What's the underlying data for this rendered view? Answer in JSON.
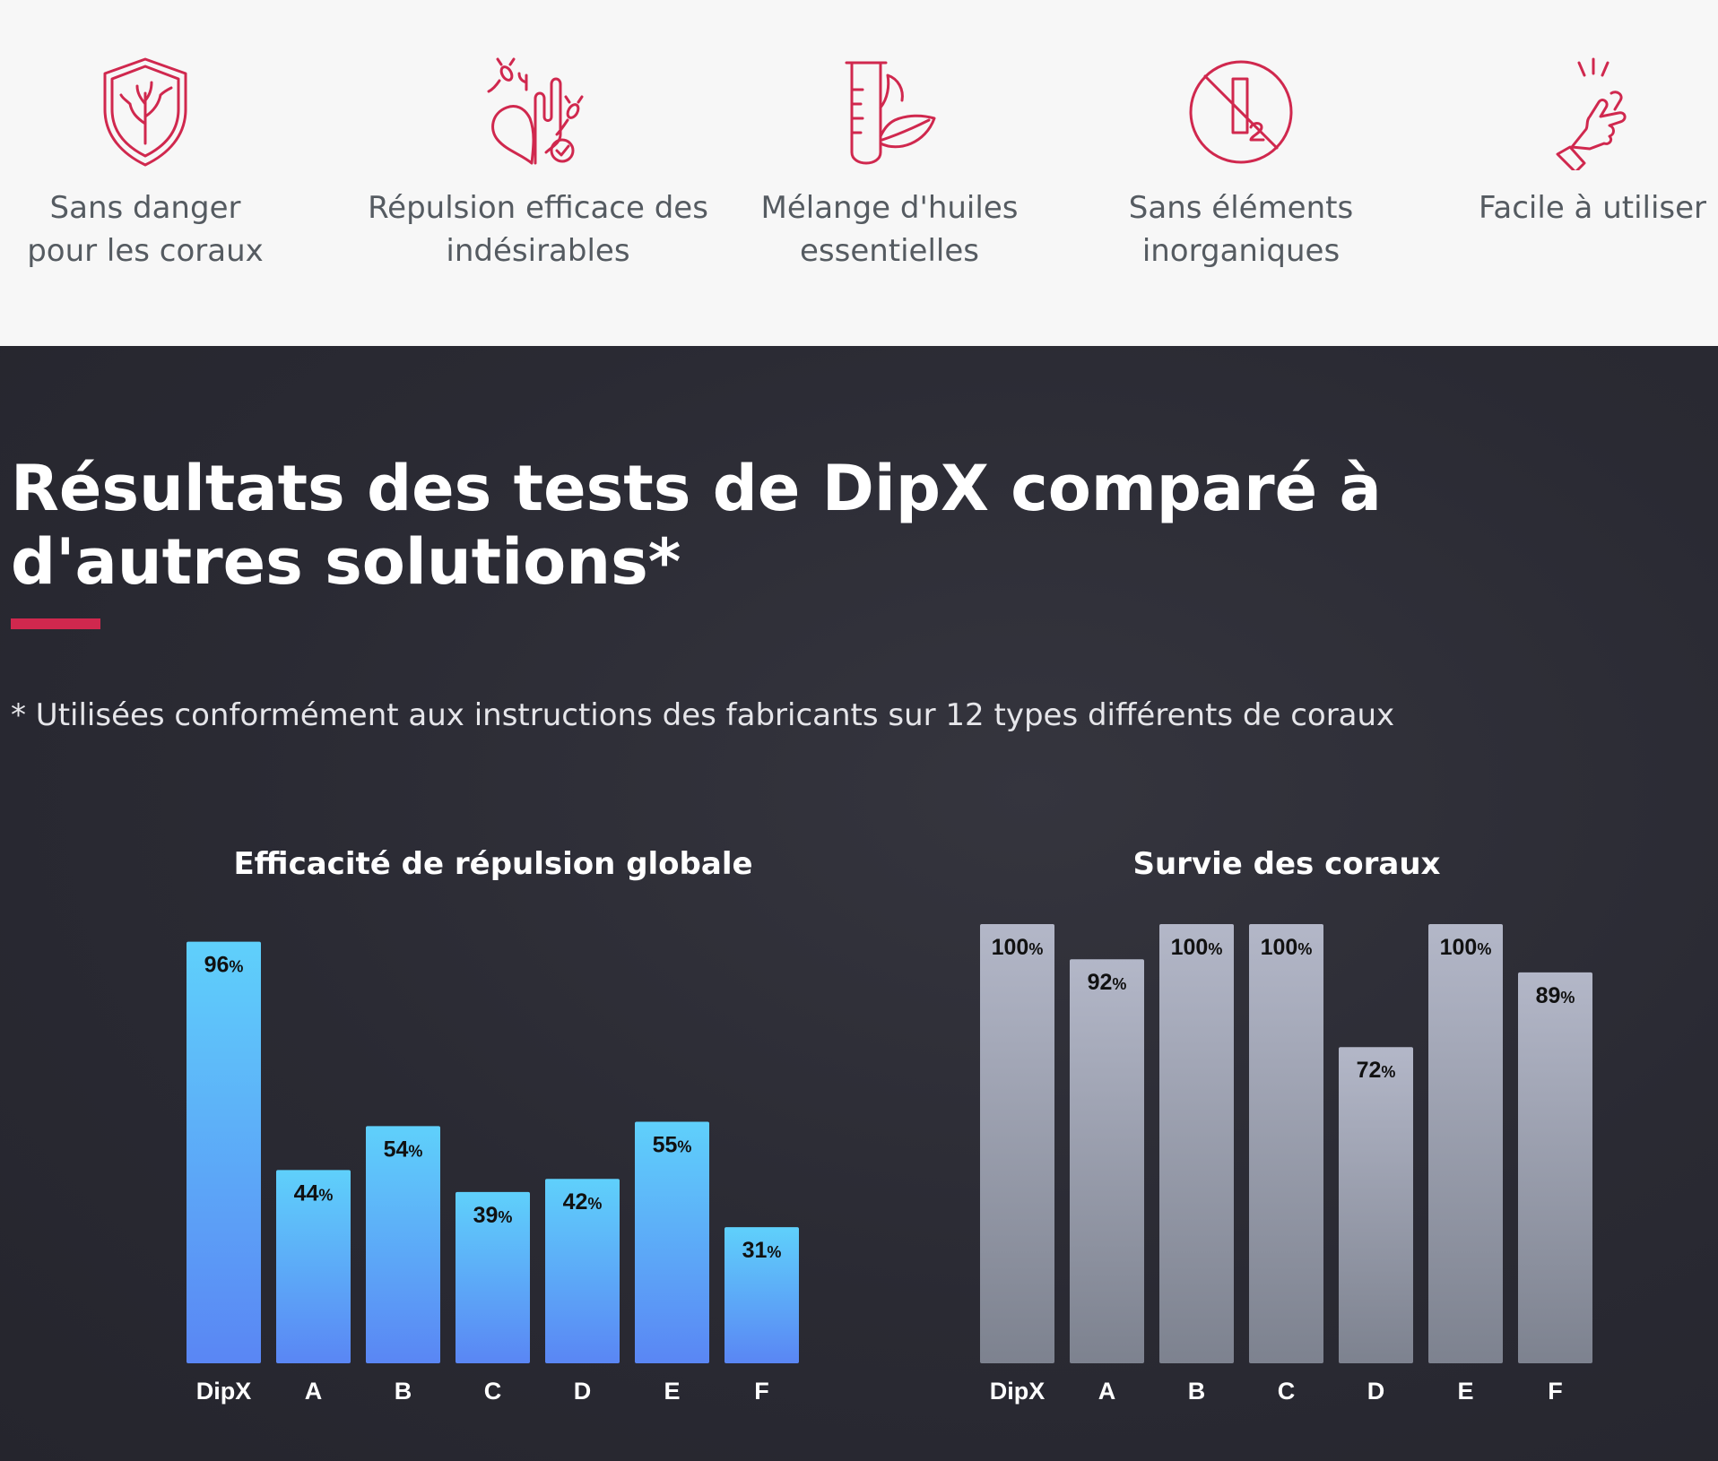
{
  "features": [
    {
      "label": "Sans danger\npour les coraux",
      "icon": "coral-shield-icon"
    },
    {
      "label": "Répulsion efficace des\nindésirables",
      "icon": "coral-pests-icon"
    },
    {
      "label": "Mélange d'huiles\nessentielles",
      "icon": "test-tube-leaf-icon"
    },
    {
      "label": "Sans éléments\ninorganiques",
      "icon": "no-inorganic-icon"
    },
    {
      "label": "Facile à utiliser",
      "icon": "tap-hand-icon"
    }
  ],
  "section": {
    "title": "Résultats des tests de DipX comparé à d'autres solutions*",
    "note": "* Utilisées conformément aux instructions des fabricants sur 12 types différents de coraux"
  },
  "colors": {
    "accent": "#d0284e",
    "icon": "#d0284e",
    "blue_top": "#5fd0fb",
    "blue_bottom": "#5a86f4",
    "gray_top": "#b3b7c8",
    "gray_bottom": "#7d828f"
  },
  "chart_data": [
    {
      "type": "bar",
      "title": "Efficacité de répulsion globale",
      "categories": [
        "DipX",
        "A",
        "B",
        "C",
        "D",
        "E",
        "F"
      ],
      "values": [
        96,
        44,
        54,
        39,
        42,
        55,
        31
      ],
      "unit": "%",
      "ylim": [
        0,
        100
      ],
      "grid": false
    },
    {
      "type": "bar",
      "title": "Survie des coraux",
      "categories": [
        "DipX",
        "A",
        "B",
        "C",
        "D",
        "E",
        "F"
      ],
      "values": [
        100,
        92,
        100,
        100,
        72,
        100,
        89
      ],
      "unit": "%",
      "ylim": [
        0,
        100
      ],
      "grid": false
    }
  ]
}
